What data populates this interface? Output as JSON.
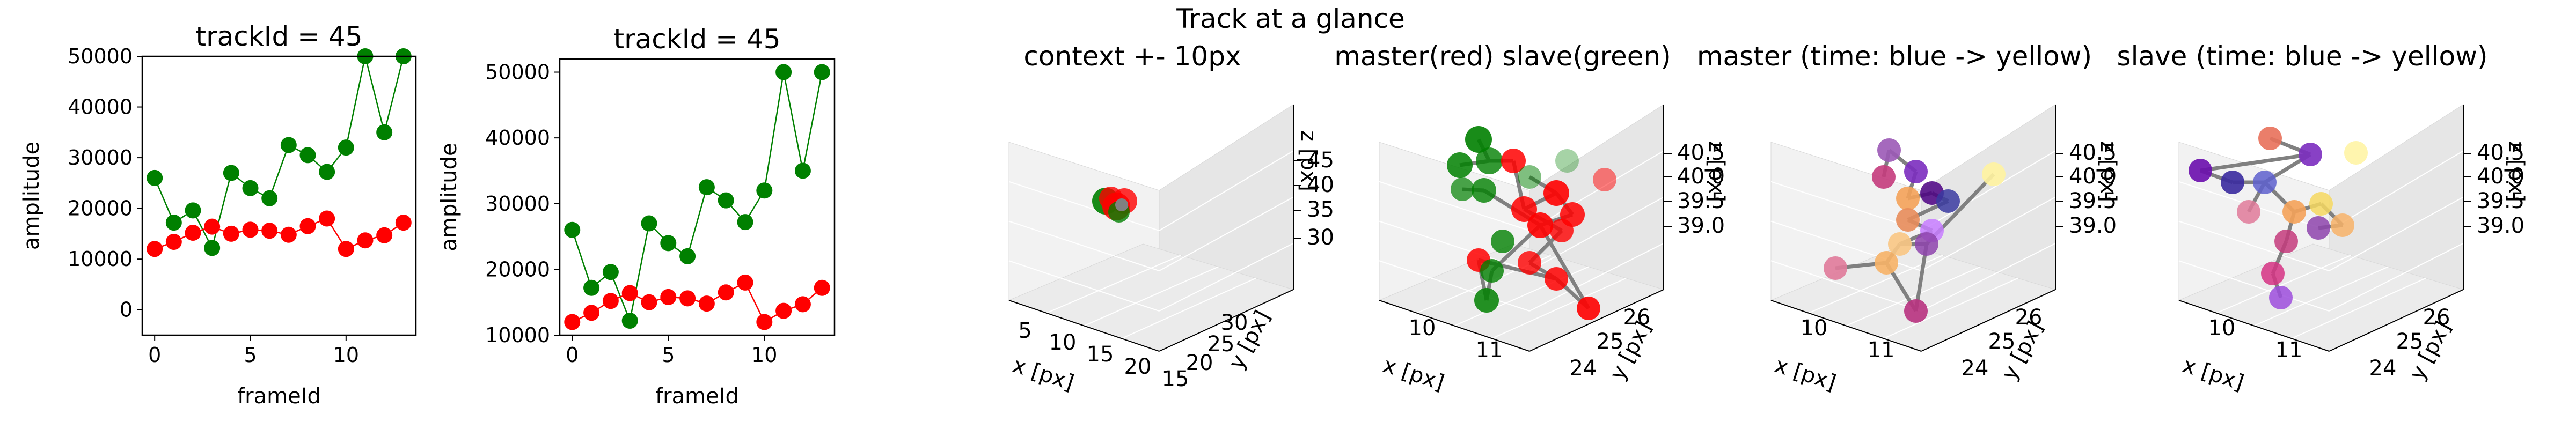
{
  "figure": {
    "suptitle": "Track at a glance"
  },
  "colors": {
    "master": "#ff0000",
    "slave": "#008000",
    "line": "#808080",
    "pane_left": "#f2f2f2",
    "pane_right": "#e6e6e6",
    "pane_floor": "#ebebeb"
  },
  "chart_data": [
    {
      "type": "line",
      "title": "trackId = 45",
      "xlabel": "frameId",
      "ylabel": "amplitude",
      "xlim": [
        -0.65,
        13.65
      ],
      "ylim": [
        -5000,
        50000
      ],
      "xticks": [
        "0",
        "5",
        "10"
      ],
      "yticks": [
        "0",
        "10000",
        "20000",
        "30000",
        "40000",
        "50000"
      ],
      "series": [
        {
          "color": "#008000",
          "x": [
            0,
            1,
            2,
            3,
            4,
            5,
            6,
            7,
            8,
            9,
            10,
            11,
            12,
            13
          ],
          "values": [
            26000,
            17200,
            19600,
            12200,
            27000,
            24000,
            22000,
            32500,
            30500,
            27200,
            32000,
            50000,
            35000,
            50000
          ]
        },
        {
          "color": "#ff0000",
          "x": [
            0,
            1,
            2,
            3,
            4,
            5,
            6,
            7,
            8,
            9,
            10,
            11,
            12,
            13
          ],
          "values": [
            12000,
            13400,
            15200,
            16400,
            15000,
            15800,
            15600,
            14800,
            16500,
            18000,
            12000,
            13700,
            14700,
            17200
          ]
        }
      ]
    },
    {
      "type": "line",
      "title": "trackId = 45",
      "xlabel": "frameId",
      "ylabel": "amplitude",
      "xlim": [
        -0.65,
        13.65
      ],
      "ylim": [
        10000,
        52000
      ],
      "xticks": [
        "0",
        "5",
        "10"
      ],
      "yticks": [
        "10000",
        "20000",
        "30000",
        "40000",
        "50000"
      ],
      "series": [
        {
          "color": "#008000",
          "x": [
            0,
            1,
            2,
            3,
            4,
            5,
            6,
            7,
            8,
            9,
            10,
            11,
            12,
            13
          ],
          "values": [
            26000,
            17200,
            19600,
            12200,
            27000,
            24000,
            22000,
            32500,
            30500,
            27200,
            32000,
            50000,
            35000,
            50000
          ]
        },
        {
          "color": "#ff0000",
          "x": [
            0,
            1,
            2,
            3,
            4,
            5,
            6,
            7,
            8,
            9,
            10,
            11,
            12,
            13
          ],
          "values": [
            12000,
            13400,
            15200,
            16400,
            15000,
            15800,
            15600,
            14800,
            16500,
            18000,
            12000,
            13700,
            14700,
            17200
          ]
        }
      ]
    },
    {
      "type": "scatter",
      "title": "context +- 10px",
      "xlabel": "x [px]",
      "ylabel": "y [px]",
      "zlabel": "z [px]",
      "xticks": [
        "5",
        "10",
        "15",
        "20"
      ],
      "yticks": [
        "15",
        "20",
        "25",
        "30"
      ],
      "zticks": [
        "30",
        "35",
        "40",
        "45"
      ],
      "points_note_colors": [
        "#008000",
        "#ff0000"
      ]
    },
    {
      "type": "scatter",
      "title": "master(red) slave(green)",
      "xlabel": "x [px]",
      "ylabel": "y [px]",
      "zlabel": "z [px]",
      "xticks": [
        "10",
        "11"
      ],
      "yticks": [
        "24",
        "25",
        "26"
      ],
      "zticks": [
        "39.0",
        "39.5",
        "40.0",
        "40.5"
      ],
      "points_note_colors": [
        "#ff0000",
        "#008000"
      ]
    },
    {
      "type": "scatter",
      "title": "master (time: blue -> yellow)",
      "xlabel": "x [px]",
      "ylabel": "y [px]",
      "zlabel": "z [px]",
      "xticks": [
        "10",
        "11"
      ],
      "yticks": [
        "24",
        "25",
        "26"
      ],
      "zticks": [
        "39.0",
        "39.5",
        "40.0",
        "40.5"
      ]
    },
    {
      "type": "scatter",
      "title": "slave (time: blue -> yellow)",
      "xlabel": "x [px]",
      "ylabel": "y [px]",
      "zlabel": "z [px]",
      "xticks": [
        "10",
        "11"
      ],
      "yticks": [
        "24",
        "25",
        "26"
      ],
      "zticks": [
        "39.0",
        "39.5",
        "40.0",
        "40.5"
      ]
    }
  ]
}
